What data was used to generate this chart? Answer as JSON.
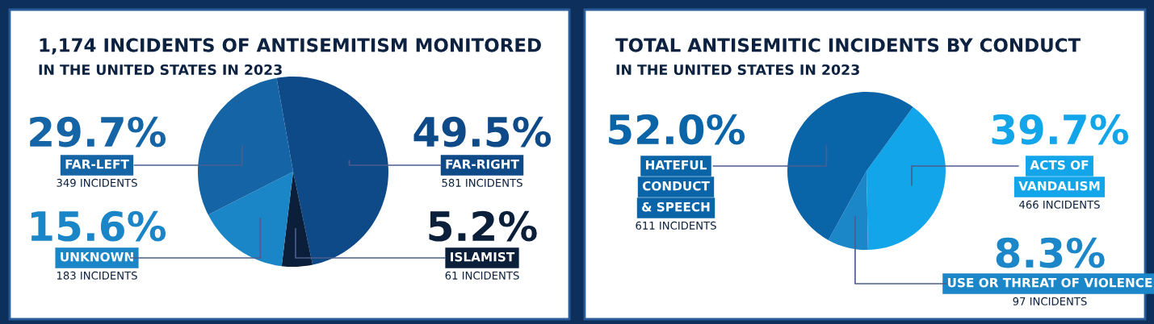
{
  "chart_data": [
    {
      "type": "pie",
      "title": "1,174 INCIDENTS OF ANTISEMITISM MONITORED",
      "subtitle": "IN THE UNITED STATES IN 2023",
      "categories": [
        "FAR-RIGHT",
        "ISLAMIST",
        "UNKNOWN",
        "FAR-LEFT"
      ],
      "values": [
        49.5,
        5.2,
        15.6,
        29.7
      ],
      "colors": [
        "#0e4a88",
        "#0b1f3a",
        "#1a86c7",
        "#1565a6"
      ],
      "value_labels": [
        "49.5%",
        "5.2%",
        "15.6%",
        "29.7%"
      ],
      "annotations": [
        "581 INCIDENTS",
        "61 INCIDENTS",
        "183 INCIDENTS",
        "349 INCIDENTS"
      ]
    },
    {
      "type": "pie",
      "title": "TOTAL ANTISEMITIC INCIDENTS BY CONDUCT",
      "subtitle": "IN THE UNITED STATES IN 2023",
      "categories": [
        "ACTS OF\nVANDALISM",
        "USE OR THREAT OF VIOLENCE",
        "HATEFUL\nCONDUCT\n& SPEECH"
      ],
      "values": [
        39.7,
        8.3,
        52.0
      ],
      "colors": [
        "#12a5ea",
        "#1b87c9",
        "#0a64a8"
      ],
      "value_labels": [
        "39.7%",
        "8.3%",
        "52.0%"
      ],
      "annotations": [
        "466 INCIDENTS",
        "97 INCIDENTS",
        "611 INCIDENTS"
      ]
    }
  ]
}
